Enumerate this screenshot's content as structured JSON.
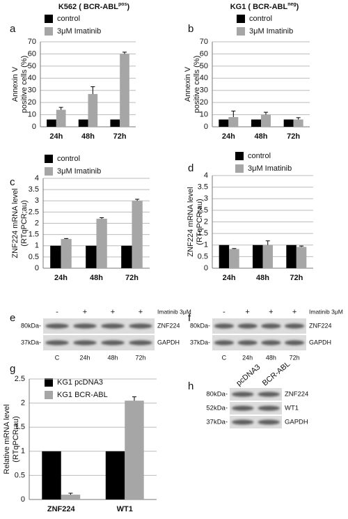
{
  "chart_data": [
    {
      "type": "bar",
      "panel": "a",
      "title": "K562 ( BCR-ABL",
      "title_superscript": "pos",
      "title_suffix": ")",
      "ylabel": [
        "Annexin V",
        "positive cells (%)"
      ],
      "categories": [
        "24h",
        "48h",
        "72h"
      ],
      "series": [
        {
          "name": "control",
          "color": "#000000",
          "values": [
            6,
            6,
            6
          ]
        },
        {
          "name": "3μM Imatinib",
          "color": "#a6a6a6",
          "values": [
            14,
            27,
            60
          ],
          "errors": [
            2,
            6,
            1.5
          ]
        }
      ],
      "ylim": [
        0,
        70
      ],
      "yticks": [
        0,
        10,
        20,
        30,
        40,
        50,
        60,
        70
      ],
      "grid": true
    },
    {
      "type": "bar",
      "panel": "b",
      "title": "KG1 ( BCR-ABL",
      "title_superscript": "neg",
      "title_suffix": ")",
      "ylabel": [
        "Annexin V",
        "positive cells (%)"
      ],
      "categories": [
        "24h",
        "48h",
        "72h"
      ],
      "series": [
        {
          "name": "control",
          "color": "#000000",
          "values": [
            6,
            6,
            6
          ]
        },
        {
          "name": "3μM Imatinib",
          "color": "#a6a6a6",
          "values": [
            8,
            10,
            6
          ],
          "errors": [
            5,
            2,
            1.5
          ]
        }
      ],
      "ylim": [
        0,
        70
      ],
      "yticks": [
        0,
        10,
        20,
        30,
        40,
        50,
        60,
        70
      ],
      "grid": true
    },
    {
      "type": "bar",
      "panel": "c",
      "ylabel": [
        "ZNF224 mRNA level",
        "(RTqPCR;au)"
      ],
      "categories": [
        "24h",
        "48h",
        "72h"
      ],
      "series": [
        {
          "name": "control",
          "color": "#000000",
          "values": [
            1,
            1,
            1
          ]
        },
        {
          "name": "3μM Imatinib",
          "color": "#a6a6a6",
          "values": [
            1.3,
            2.2,
            3.0
          ],
          "errors": [
            0.02,
            0.05,
            0.07
          ]
        }
      ],
      "ylim": [
        0,
        4
      ],
      "yticks": [
        0,
        0.5,
        1,
        1.5,
        2,
        2.5,
        3,
        3.5,
        4
      ],
      "grid": true
    },
    {
      "type": "bar",
      "panel": "d",
      "ylabel": [
        "ZNF224 mRNA level",
        "(RTqPCR;au)"
      ],
      "categories": [
        "24h",
        "48h",
        "72h"
      ],
      "series": [
        {
          "name": "control",
          "color": "#000000",
          "values": [
            1,
            1,
            1
          ]
        },
        {
          "name": "3μM Imatinib",
          "color": "#a6a6a6",
          "values": [
            0.83,
            1.0,
            0.92
          ],
          "errors": [
            0.02,
            0.18,
            0.04
          ]
        }
      ],
      "ylim": [
        0,
        4
      ],
      "yticks": [
        0,
        0.5,
        1,
        1.5,
        2,
        2.5,
        3,
        3.5,
        4
      ],
      "grid": true
    },
    {
      "type": "bar",
      "panel": "g",
      "ylabel": [
        "Relative mRNA level",
        "(RTqPCR;au)"
      ],
      "categories": [
        "ZNF224",
        "WT1"
      ],
      "series": [
        {
          "name": "KG1 pcDNA3",
          "color": "#000000",
          "values": [
            1,
            1
          ]
        },
        {
          "name": "KG1 BCR-ABL",
          "color": "#a6a6a6",
          "values": [
            0.1,
            2.05
          ],
          "errors": [
            0.03,
            0.08
          ]
        }
      ],
      "ylim": [
        0,
        2.5
      ],
      "yticks": [
        0,
        0.5,
        1,
        1.5,
        2,
        2.5
      ],
      "grid": true
    }
  ],
  "blots": [
    {
      "panel": "e",
      "treatment": "Imatinib 3μM",
      "treatment_lanes": [
        "-",
        "+",
        "+",
        "+"
      ],
      "lanes": [
        "C",
        "24h",
        "48h",
        "72h"
      ],
      "markers": [
        "80kDa-",
        "37kDa-"
      ],
      "proteins": [
        "ZNF224",
        "GAPDH"
      ]
    },
    {
      "panel": "f",
      "treatment": "Imatinib 3μM",
      "treatment_lanes": [
        "-",
        "+",
        "+",
        "+"
      ],
      "lanes": [
        "C",
        "24h",
        "48h",
        "72h"
      ],
      "markers": [
        "80kDa-",
        "37kDa-"
      ],
      "proteins": [
        "ZNF224",
        "GAPDH"
      ]
    },
    {
      "panel": "h",
      "lanes": [
        "pcDNA3",
        "BCR-ABL"
      ],
      "markers": [
        "80kDa-",
        "52kDa-",
        "37kDa-"
      ],
      "proteins": [
        "ZNF224",
        "WT1",
        "GAPDH"
      ]
    }
  ]
}
